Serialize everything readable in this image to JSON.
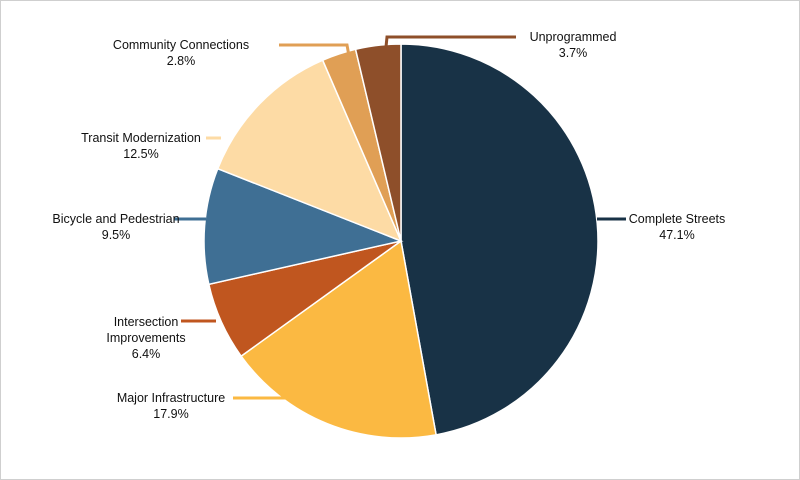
{
  "chart_data": {
    "type": "pie",
    "categories": [
      "Complete Streets",
      "Major Infrastructure",
      "Intersection Improvements",
      "Bicycle and Pedestrian",
      "Transit Modernization",
      "Community Connections",
      "Unprogrammed"
    ],
    "values": [
      47.1,
      17.9,
      6.4,
      9.5,
      12.5,
      2.8,
      3.7
    ],
    "value_labels": [
      "47.1%",
      "17.9%",
      "6.4%",
      "9.5%",
      "12.5%",
      "2.8%",
      "3.7%"
    ],
    "colors": [
      "#183246",
      "#fbb942",
      "#c0561f",
      "#3f6f94",
      "#fddba5",
      "#e09f55",
      "#8e4f2a"
    ]
  }
}
